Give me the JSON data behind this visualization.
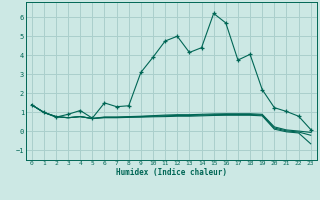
{
  "title": "",
  "xlabel": "Humidex (Indice chaleur)",
  "background_color": "#cce8e4",
  "grid_color": "#aacfcc",
  "line_color": "#006655",
  "x": [
    0,
    1,
    2,
    3,
    4,
    5,
    6,
    7,
    8,
    9,
    10,
    11,
    12,
    13,
    14,
    15,
    16,
    17,
    18,
    19,
    20,
    21,
    22,
    23
  ],
  "series_main": [
    1.4,
    1.0,
    0.75,
    0.9,
    1.1,
    0.7,
    1.5,
    1.3,
    1.35,
    3.1,
    3.9,
    4.75,
    5.0,
    4.15,
    4.4,
    6.2,
    5.7,
    3.75,
    4.05,
    2.2,
    1.25,
    1.05,
    0.8,
    0.1
  ],
  "series_flat1": [
    1.4,
    1.0,
    0.78,
    0.72,
    0.78,
    0.68,
    0.72,
    0.72,
    0.74,
    0.75,
    0.77,
    0.78,
    0.8,
    0.8,
    0.82,
    0.84,
    0.85,
    0.85,
    0.85,
    0.82,
    0.12,
    -0.02,
    -0.08,
    -0.65
  ],
  "series_flat2": [
    1.4,
    1.0,
    0.78,
    0.72,
    0.78,
    0.68,
    0.74,
    0.74,
    0.76,
    0.78,
    0.8,
    0.82,
    0.84,
    0.84,
    0.86,
    0.88,
    0.89,
    0.89,
    0.89,
    0.86,
    0.18,
    0.03,
    -0.03,
    -0.2
  ],
  "series_flat3": [
    1.4,
    1.0,
    0.78,
    0.72,
    0.78,
    0.68,
    0.76,
    0.76,
    0.78,
    0.8,
    0.83,
    0.86,
    0.88,
    0.88,
    0.9,
    0.92,
    0.93,
    0.93,
    0.93,
    0.9,
    0.24,
    0.08,
    0.02,
    -0.05
  ],
  "ylim": [
    -1.5,
    6.8
  ],
  "yticks": [
    -1,
    0,
    1,
    2,
    3,
    4,
    5,
    6
  ],
  "xticks": [
    0,
    1,
    2,
    3,
    4,
    5,
    6,
    7,
    8,
    9,
    10,
    11,
    12,
    13,
    14,
    15,
    16,
    17,
    18,
    19,
    20,
    21,
    22,
    23
  ]
}
